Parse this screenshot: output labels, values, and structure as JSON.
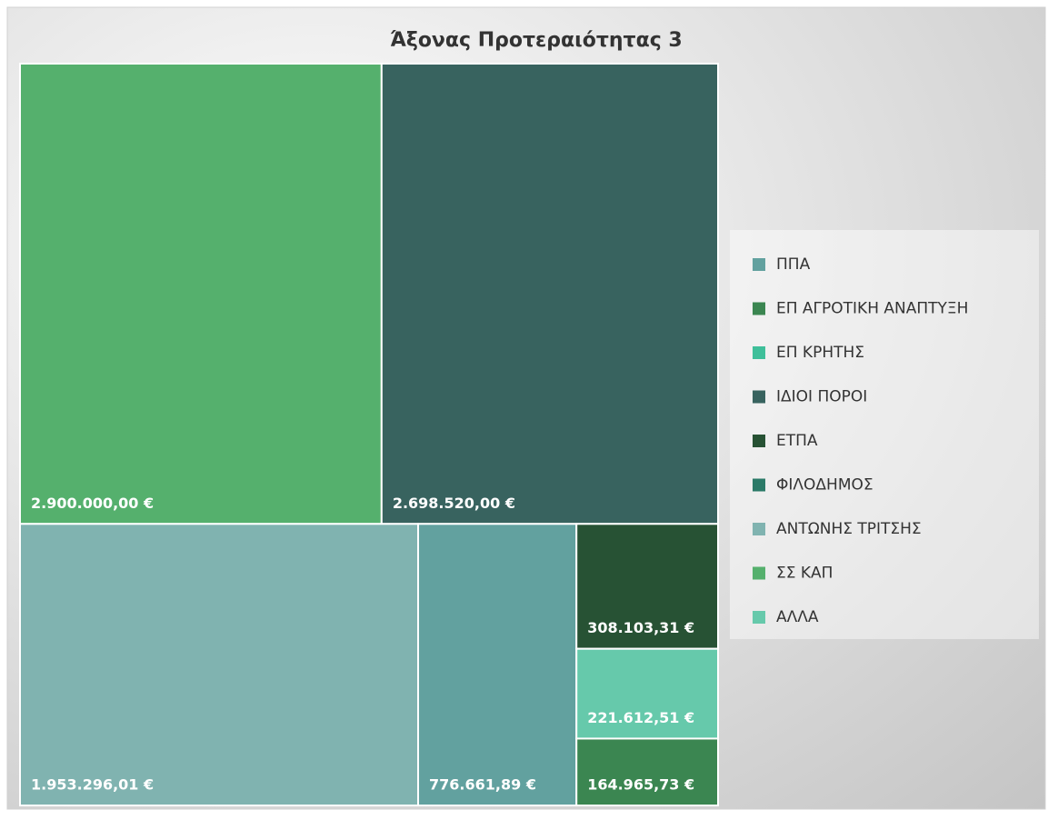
{
  "chart_data": {
    "type": "treemap",
    "title": "Άξονας Προτεραιότητας 3",
    "categories": [
      "ΠΠΑ",
      "ΕΠ ΑΓΡΟΤΙΚΗ ΑΝΑΠΤΥΞΗ",
      "ΕΠ ΚΡΗΤΗΣ",
      "ΙΔΙΟΙ ΠΟΡΟΙ",
      "ΕΤΠΑ",
      "ΦΙΛΟΔΗΜΟΣ",
      "ΑΝΤΩΝΗΣ ΤΡΙΤΣΗΣ",
      "ΣΣ ΚΑΠ",
      "ΑΛΛΑ"
    ],
    "values": [
      776661.89,
      164965.73,
      null,
      2698520.0,
      308103.31,
      null,
      1953296.01,
      2900000.0,
      221612.51
    ],
    "value_labels": [
      "776.661,89 €",
      "164.965,73 €",
      null,
      "2.698.520,00 €",
      "308.103,31 €",
      null,
      "1.953.296,01 €",
      "2.900.000,00 €",
      "221.612,51 €"
    ],
    "colors": [
      "#62a19f",
      "#3b8651",
      "#3fbf9a",
      "#38635f",
      "#275234",
      "#2b7a68",
      "#80b3b0",
      "#55b06d",
      "#66c9ab"
    ],
    "legend": "right"
  }
}
